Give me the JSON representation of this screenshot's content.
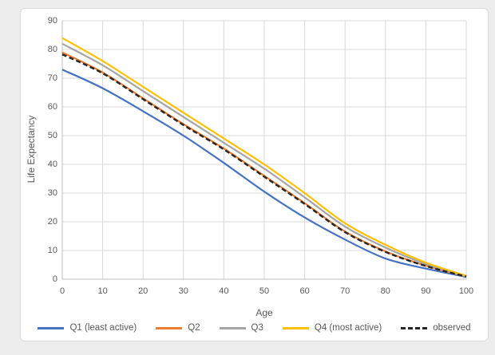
{
  "chart_data": {
    "type": "line",
    "title": "",
    "xlabel": "Age",
    "ylabel": "Life Expectancy",
    "xlim": [
      0,
      100
    ],
    "ylim": [
      0,
      90
    ],
    "x_ticks": [
      0,
      10,
      20,
      30,
      40,
      50,
      60,
      70,
      80,
      90,
      100
    ],
    "y_ticks": [
      0,
      10,
      20,
      30,
      40,
      50,
      60,
      70,
      80,
      90
    ],
    "grid": "both",
    "legend_position": "bottom",
    "x": [
      0,
      10,
      20,
      30,
      40,
      50,
      60,
      70,
      80,
      90,
      100
    ],
    "series": [
      {
        "name": "Q1 (least active)",
        "color": "#4472C4",
        "dash": false,
        "values": [
          73,
          66.5,
          58.5,
          50,
          40.5,
          30.5,
          21.5,
          13.8,
          7.2,
          3.7,
          0.8
        ]
      },
      {
        "name": "Q2",
        "color": "#ED7D31",
        "dash": false,
        "values": [
          79,
          72,
          63,
          54,
          45.5,
          36,
          26.5,
          16.6,
          9.7,
          4.7,
          1.0
        ]
      },
      {
        "name": "Q3",
        "color": "#A5A5A5",
        "dash": false,
        "values": [
          82,
          74.5,
          65.5,
          56.5,
          47.5,
          38.5,
          28.5,
          18.3,
          11,
          5.3,
          1.1
        ]
      },
      {
        "name": "Q4 (most active)",
        "color": "#FFC000",
        "dash": false,
        "values": [
          84,
          76,
          67,
          58,
          49,
          40,
          30,
          19.5,
          12,
          5.8,
          1.2
        ]
      },
      {
        "name": "observed",
        "color": "#262626",
        "dash": true,
        "values": [
          78.3,
          71.7,
          62.7,
          53.7,
          45.2,
          35.7,
          26.2,
          16.4,
          9.5,
          4.6,
          0.9
        ]
      }
    ]
  },
  "colors": {
    "page_bg": "#ededed",
    "panel_bg": "#ffffff",
    "panel_border": "#d9d9d9",
    "gridline": "#d9d9d9",
    "axis_line": "#bfbfbf",
    "axis_text": "#595959"
  }
}
